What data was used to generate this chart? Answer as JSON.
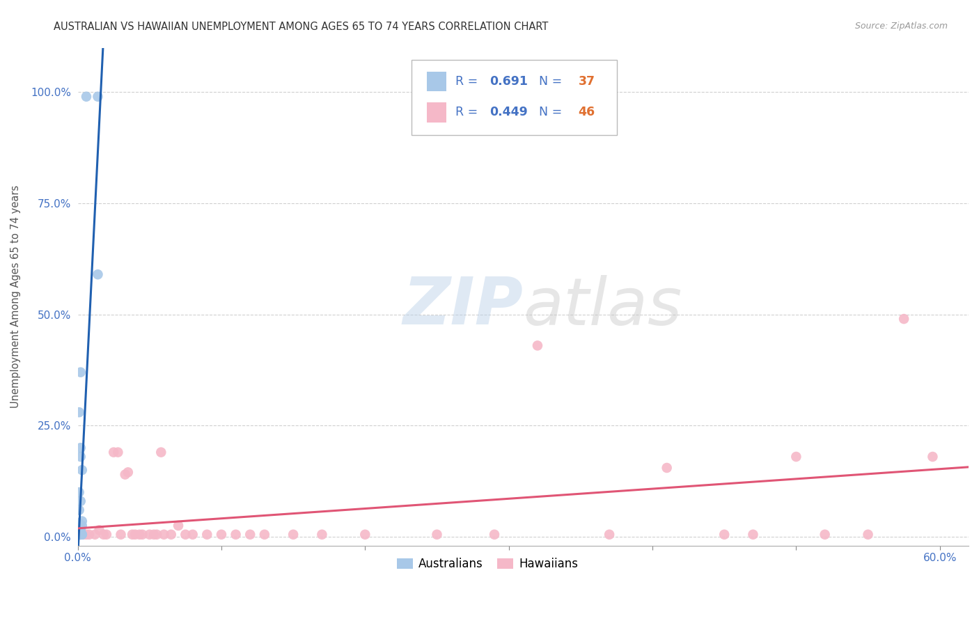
{
  "title": "AUSTRALIAN VS HAWAIIAN UNEMPLOYMENT AMONG AGES 65 TO 74 YEARS CORRELATION CHART",
  "source": "Source: ZipAtlas.com",
  "ylabel": "Unemployment Among Ages 65 to 74 years",
  "xlim": [
    0.0,
    0.62
  ],
  "ylim": [
    -0.02,
    1.1
  ],
  "xticks": [
    0.0,
    0.1,
    0.2,
    0.3,
    0.4,
    0.5,
    0.6
  ],
  "xticklabels": [
    "0.0%",
    "",
    "",
    "",
    "",
    "",
    "60.0%"
  ],
  "yticks": [
    0.0,
    0.25,
    0.5,
    0.75,
    1.0
  ],
  "yticklabels": [
    "0.0%",
    "25.0%",
    "50.0%",
    "75.0%",
    "100.0%"
  ],
  "background_color": "#ffffff",
  "grid_color": "#d0d0d0",
  "australian_color": "#a8c8e8",
  "hawaiian_color": "#f5b8c8",
  "australian_line_color": "#2060b0",
  "hawaiian_line_color": "#e05575",
  "R_australian": 0.691,
  "N_australian": 37,
  "R_hawaiian": 0.449,
  "N_hawaiian": 46,
  "watermark_zip": "ZIP",
  "watermark_atlas": "atlas",
  "legend_label_australian": "Australians",
  "legend_label_hawaiian": "Hawaiians",
  "australian_x": [
    0.002,
    0.006,
    0.001,
    0.001,
    0.002,
    0.001,
    0.001,
    0.002,
    0.003,
    0.002,
    0.002,
    0.003,
    0.003,
    0.002,
    0.002,
    0.001,
    0.003,
    0.002,
    0.001,
    0.001,
    0.002,
    0.001,
    0.001,
    0.001,
    0.002,
    0.001,
    0.002,
    0.001,
    0.001,
    0.001,
    0.002,
    0.003,
    0.001,
    0.001,
    0.002,
    0.014,
    0.014
  ],
  "australian_y": [
    0.37,
    0.99,
    0.28,
    0.1,
    0.2,
    0.06,
    0.03,
    0.08,
    0.15,
    0.18,
    0.02,
    0.035,
    0.025,
    0.015,
    0.02,
    0.005,
    0.005,
    0.005,
    0.005,
    0.005,
    0.005,
    0.005,
    0.005,
    0.005,
    0.005,
    0.005,
    0.005,
    0.005,
    0.005,
    0.005,
    0.005,
    0.005,
    0.005,
    0.005,
    0.005,
    0.99,
    0.59
  ],
  "hawaiian_x": [
    0.002,
    0.004,
    0.006,
    0.008,
    0.012,
    0.015,
    0.018,
    0.02,
    0.025,
    0.028,
    0.03,
    0.033,
    0.035,
    0.038,
    0.04,
    0.043,
    0.045,
    0.05,
    0.053,
    0.055,
    0.058,
    0.06,
    0.065,
    0.07,
    0.075,
    0.08,
    0.09,
    0.1,
    0.11,
    0.12,
    0.13,
    0.15,
    0.17,
    0.2,
    0.25,
    0.29,
    0.32,
    0.37,
    0.41,
    0.45,
    0.47,
    0.5,
    0.52,
    0.55,
    0.575,
    0.595
  ],
  "hawaiian_y": [
    0.005,
    0.005,
    0.005,
    0.005,
    0.005,
    0.015,
    0.005,
    0.005,
    0.19,
    0.19,
    0.005,
    0.14,
    0.145,
    0.005,
    0.005,
    0.005,
    0.005,
    0.005,
    0.005,
    0.005,
    0.19,
    0.005,
    0.005,
    0.025,
    0.005,
    0.005,
    0.005,
    0.005,
    0.005,
    0.005,
    0.005,
    0.005,
    0.005,
    0.005,
    0.005,
    0.005,
    0.43,
    0.005,
    0.155,
    0.005,
    0.005,
    0.18,
    0.005,
    0.005,
    0.49,
    0.18
  ]
}
